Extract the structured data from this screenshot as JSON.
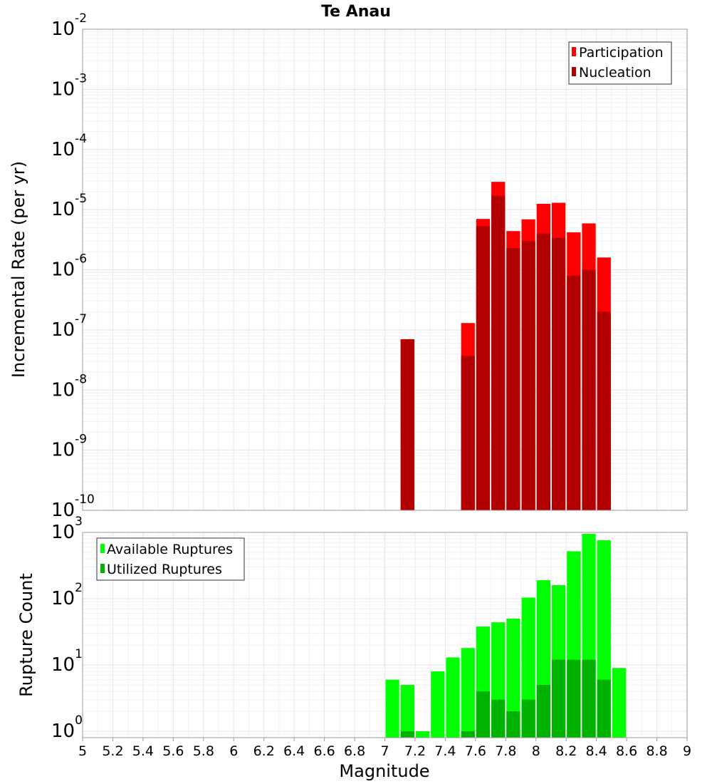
{
  "chart_data": [
    {
      "type": "bar",
      "title": "Te Anau",
      "xlabel": "",
      "ylabel": "Incremental Rate (per yr)",
      "y_scale": "log",
      "ylim": [
        1e-10,
        0.01
      ],
      "xlim": [
        5,
        9
      ],
      "grid": true,
      "legend_position": "top-right",
      "bin_width": 0.1,
      "series": [
        {
          "name": "Participation",
          "color": "#ff0000",
          "x": [
            7.15,
            7.55,
            7.65,
            7.75,
            7.85,
            7.95,
            8.05,
            8.15,
            8.25,
            8.35,
            8.45
          ],
          "values": [
            7e-08,
            1.3e-07,
            7e-06,
            2.9e-05,
            4.4e-06,
            6.9e-06,
            1.25e-05,
            1.3e-05,
            4.2e-06,
            5.9e-06,
            1.6e-06
          ]
        },
        {
          "name": "Nucleation",
          "color": "#b20000",
          "x": [
            7.15,
            7.55,
            7.65,
            7.75,
            7.85,
            7.95,
            8.05,
            8.15,
            8.25,
            8.35,
            8.45
          ],
          "values": [
            7e-08,
            3.7e-08,
            5.3e-06,
            1.7e-05,
            2.3e-06,
            3e-06,
            4e-06,
            3.4e-06,
            8e-07,
            1e-06,
            2e-07
          ]
        }
      ]
    },
    {
      "type": "bar",
      "title": "",
      "xlabel": "Magnitude",
      "ylabel": "Rupture Count",
      "y_scale": "log",
      "ylim": [
        0.8,
        1000
      ],
      "xlim": [
        5,
        9
      ],
      "grid": true,
      "legend_position": "top-left",
      "bin_width": 0.1,
      "x_ticks": [
        "5",
        "5.2",
        "5.4",
        "5.6",
        "5.8",
        "6",
        "6.2",
        "6.4",
        "6.6",
        "6.8",
        "7",
        "7.2",
        "7.4",
        "7.6",
        "7.8",
        "8",
        "8.2",
        "8.4",
        "8.6",
        "8.8",
        "9"
      ],
      "series": [
        {
          "name": "Available Ruptures",
          "color": "#00ff00",
          "x": [
            7.05,
            7.15,
            7.25,
            7.35,
            7.45,
            7.55,
            7.65,
            7.75,
            7.85,
            7.95,
            8.05,
            8.15,
            8.25,
            8.35,
            8.45,
            8.55
          ],
          "values": [
            6,
            5,
            1,
            8,
            13,
            18,
            38,
            44,
            50,
            104,
            190,
            160,
            520,
            950,
            760,
            9
          ]
        },
        {
          "name": "Utilized Ruptures",
          "color": "#00b200",
          "x": [
            7.15,
            7.55,
            7.65,
            7.75,
            7.85,
            7.95,
            8.05,
            8.15,
            8.25,
            8.35,
            8.45
          ],
          "values": [
            1,
            1,
            4,
            3,
            2,
            3,
            5,
            12,
            12,
            12,
            6
          ]
        }
      ]
    }
  ]
}
